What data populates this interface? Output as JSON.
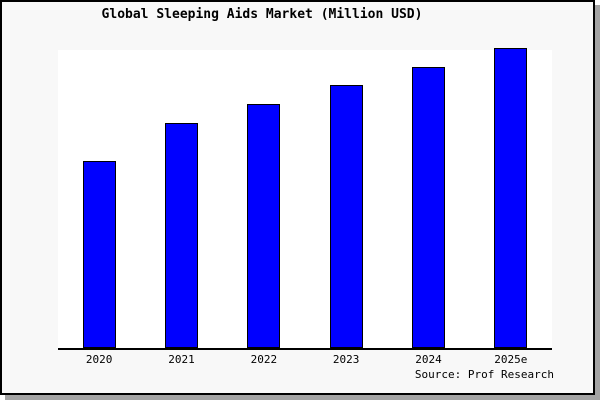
{
  "figure": {
    "title": "Global Sleeping Aids Market (Million USD)",
    "source": "Source: Prof Research"
  },
  "chart_data": {
    "type": "bar",
    "title": "Global Sleeping Aids Market (Million USD)",
    "categories": [
      "2020",
      "2021",
      "2022",
      "2023",
      "2024",
      "2025e"
    ],
    "values": [
      62.3,
      75.0,
      81.5,
      87.7,
      93.7,
      100.0
    ],
    "values_note": "No numeric y-axis or data labels are shown in the chart; values are relative bar heights as a percent of the tallest bar (2025e = 100).",
    "xlabel": "",
    "ylabel": "",
    "ylim": [
      0,
      100
    ],
    "grid": false,
    "legend": false,
    "source": "Source: Prof Research",
    "colors": {
      "bar_fill": "#0000ff",
      "bar_edge": "#000000",
      "plot_background": "#ffffff",
      "figure_background": "#f8f8f8",
      "frame_border": "#000000",
      "shadow": "#a3a3a3",
      "text": "#000000"
    }
  }
}
